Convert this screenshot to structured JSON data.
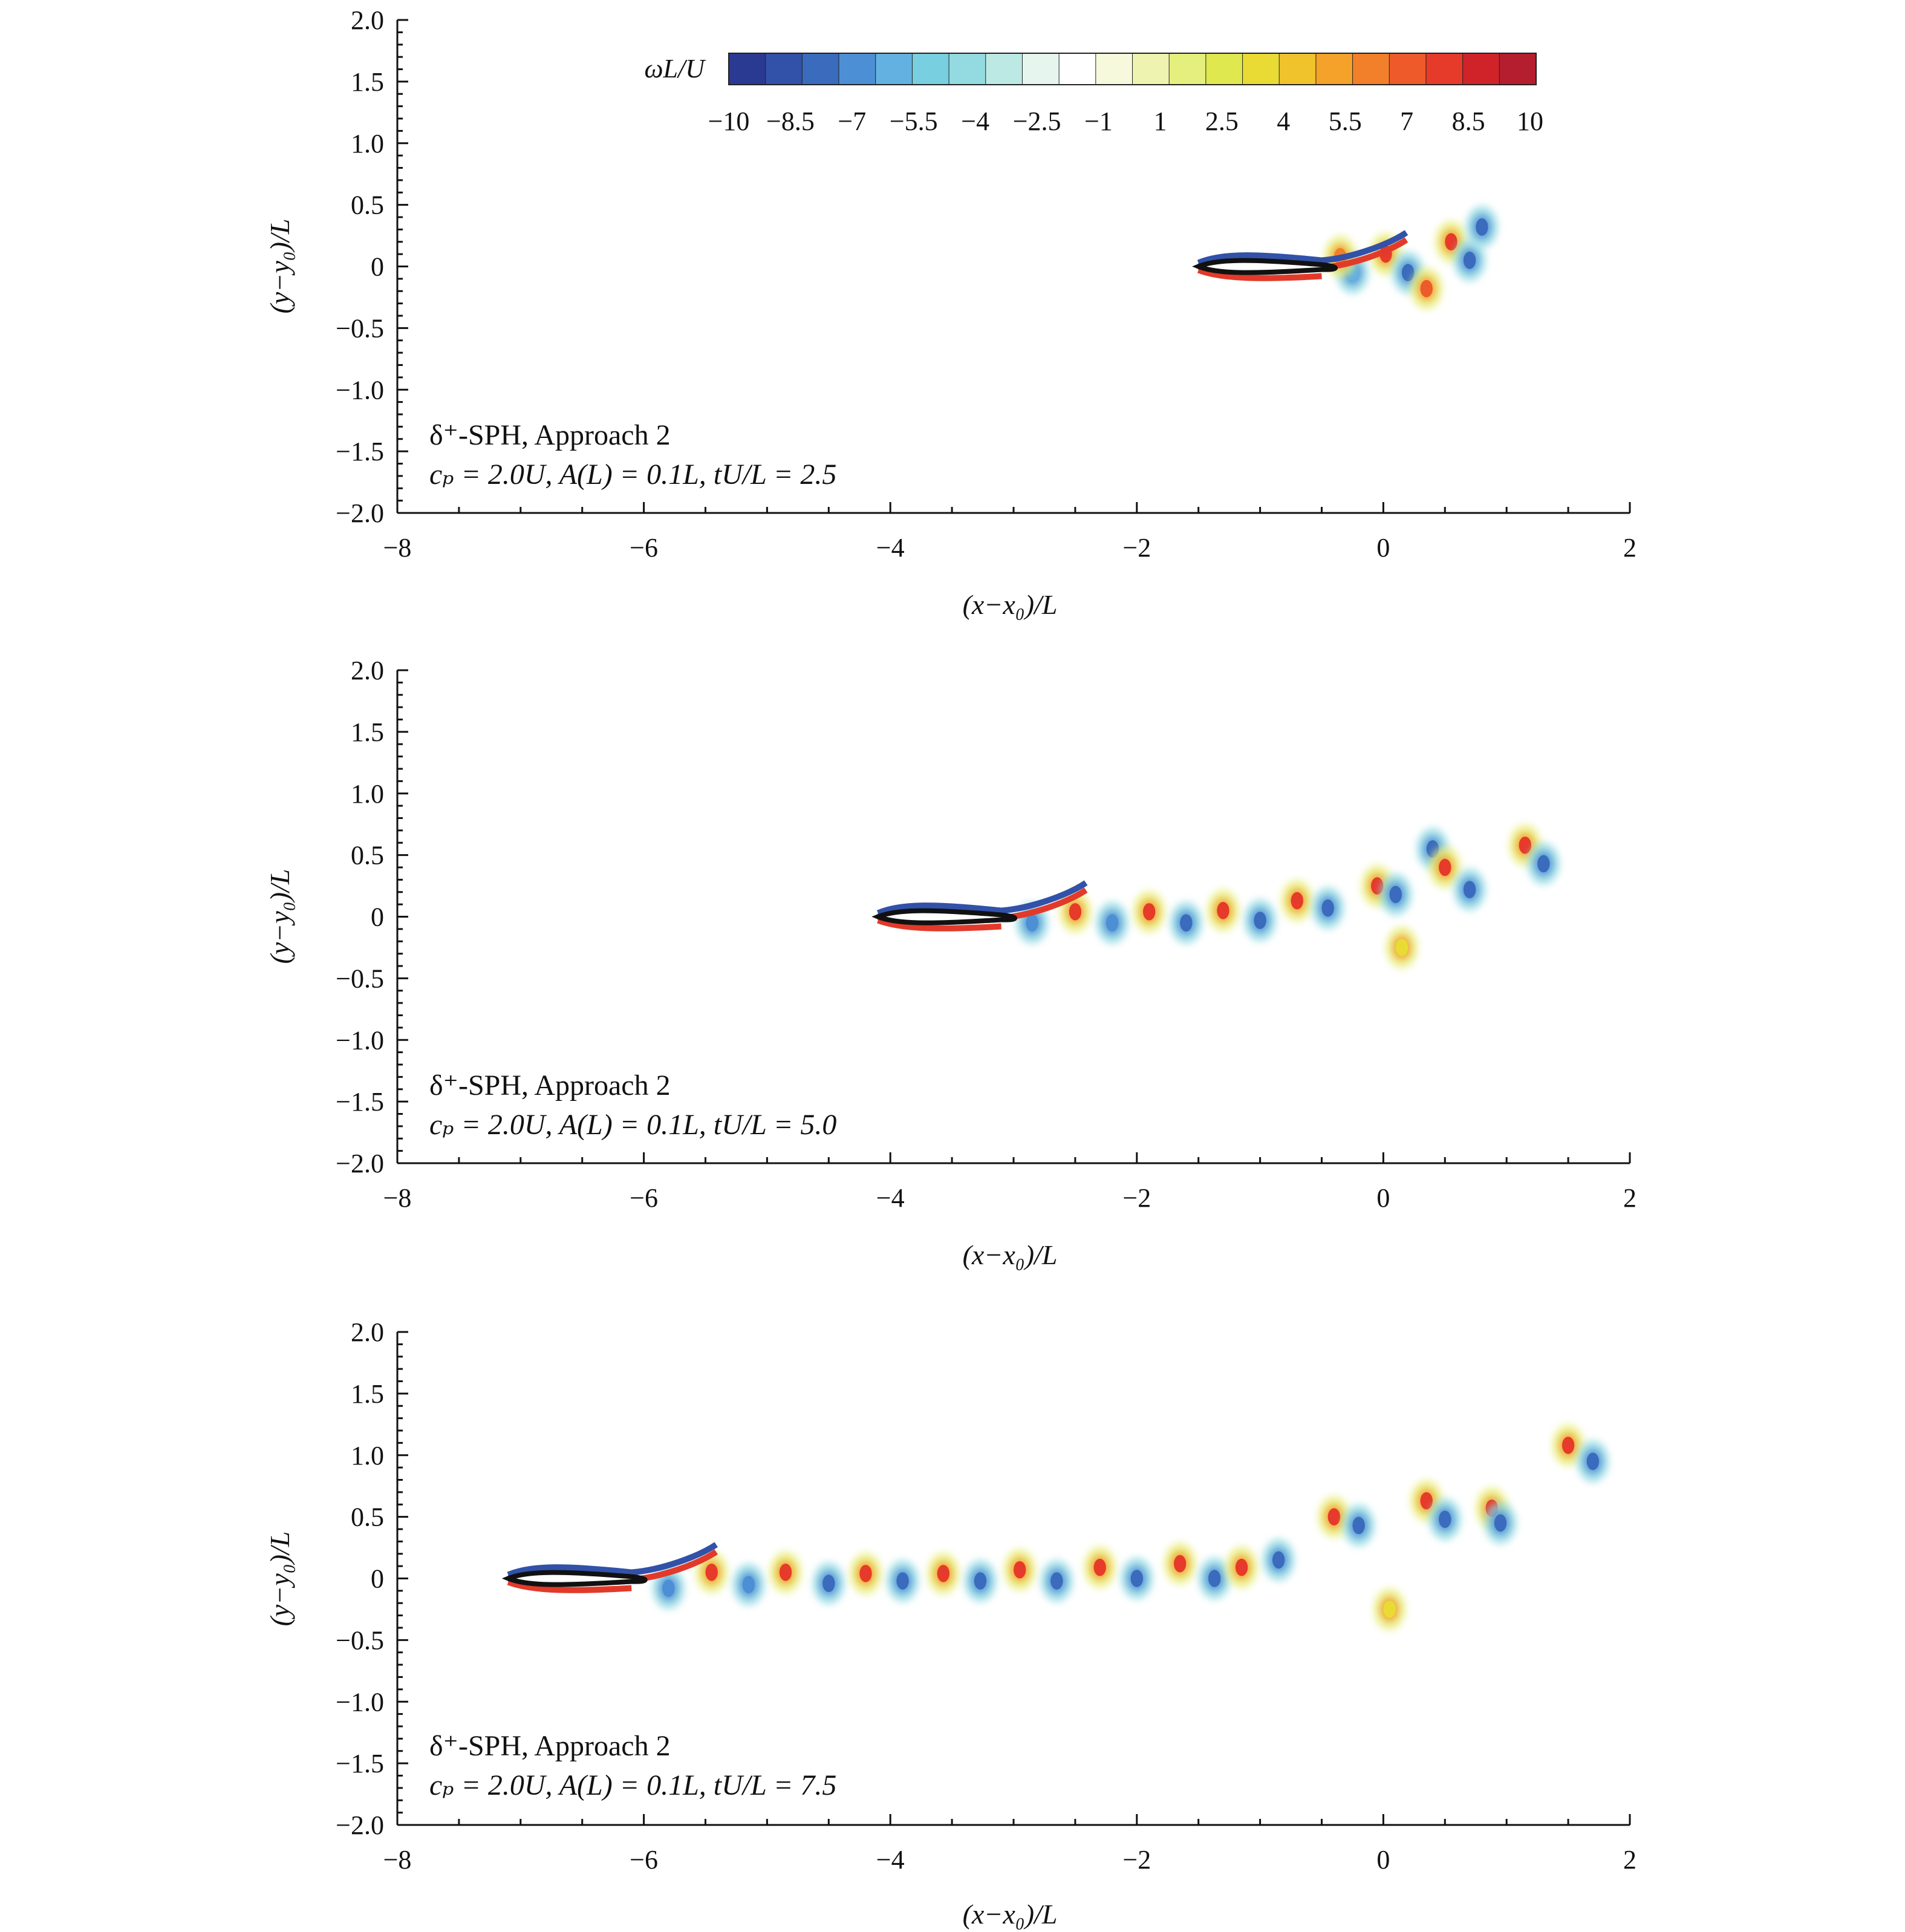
{
  "chart_data": [
    {
      "type": "heatmap",
      "title": "",
      "xlabel": "(x−x₀)/L",
      "ylabel": "(y−y₀)/L",
      "xlim": [
        -8,
        2
      ],
      "ylim": [
        -2.0,
        2.0
      ],
      "x_ticks": [
        "−8",
        "−6",
        "−4",
        "−2",
        "0",
        "2"
      ],
      "y_ticks": [
        "2.0",
        "1.5",
        "1.0",
        "0.5",
        "0",
        "−0.5",
        "−1.0",
        "−1.5",
        "−2.0"
      ],
      "annotation_line1": "δ⁺-SPH, Approach 2",
      "annotation_line2": "cₚ = 2.0U, A(L) = 0.1L, tU/L = 2.5",
      "body": {
        "x_start": -1.5,
        "x_end": -0.5
      },
      "vortices": [
        {
          "x": 0.02,
          "y": 0.1,
          "w": 8
        },
        {
          "x": 0.2,
          "y": -0.05,
          "w": -8
        },
        {
          "x": 0.35,
          "y": -0.18,
          "w": 7
        },
        {
          "x": 0.55,
          "y": 0.2,
          "w": 8
        },
        {
          "x": 0.7,
          "y": 0.05,
          "w": -8
        },
        {
          "x": 0.8,
          "y": 0.32,
          "w": -8
        },
        {
          "x": -0.25,
          "y": -0.05,
          "w": -6
        },
        {
          "x": -0.35,
          "y": 0.08,
          "w": 6
        }
      ]
    },
    {
      "type": "heatmap",
      "title": "",
      "xlabel": "(x−x₀)/L",
      "ylabel": "(y−y₀)/L",
      "xlim": [
        -8,
        2
      ],
      "ylim": [
        -2.0,
        2.0
      ],
      "x_ticks": [
        "−8",
        "−6",
        "−4",
        "−2",
        "0",
        "2"
      ],
      "y_ticks": [
        "2.0",
        "1.5",
        "1.0",
        "0.5",
        "0",
        "−0.5",
        "−1.0",
        "−1.5",
        "−2.0"
      ],
      "annotation_line1": "δ⁺-SPH, Approach 2",
      "annotation_line2": "cₚ = 2.0U, A(L) = 0.1L, tU/L = 5.0",
      "body": {
        "x_start": -4.1,
        "x_end": -3.1
      },
      "vortices": [
        {
          "x": -2.85,
          "y": -0.05,
          "w": -7
        },
        {
          "x": -2.5,
          "y": 0.04,
          "w": 8
        },
        {
          "x": -2.2,
          "y": -0.05,
          "w": -7
        },
        {
          "x": -1.9,
          "y": 0.04,
          "w": 8
        },
        {
          "x": -1.6,
          "y": -0.05,
          "w": -8
        },
        {
          "x": -1.3,
          "y": 0.05,
          "w": 8
        },
        {
          "x": -1.0,
          "y": -0.03,
          "w": -8
        },
        {
          "x": -0.7,
          "y": 0.13,
          "w": 8
        },
        {
          "x": -0.45,
          "y": 0.07,
          "w": -8
        },
        {
          "x": -0.05,
          "y": 0.25,
          "w": 8
        },
        {
          "x": 0.1,
          "y": 0.18,
          "w": -8
        },
        {
          "x": 0.15,
          "y": -0.25,
          "w": 3
        },
        {
          "x": 0.4,
          "y": 0.55,
          "w": -8
        },
        {
          "x": 0.5,
          "y": 0.4,
          "w": 8
        },
        {
          "x": 0.7,
          "y": 0.22,
          "w": -8
        },
        {
          "x": 1.15,
          "y": 0.58,
          "w": 8
        },
        {
          "x": 1.3,
          "y": 0.43,
          "w": -8
        }
      ]
    },
    {
      "type": "heatmap",
      "title": "",
      "xlabel": "(x−x₀)/L",
      "ylabel": "(y−y₀)/L",
      "xlim": [
        -8,
        2
      ],
      "ylim": [
        -2.0,
        2.0
      ],
      "x_ticks": [
        "−8",
        "−6",
        "−4",
        "−2",
        "0",
        "2"
      ],
      "y_ticks": [
        "2.0",
        "1.5",
        "1.0",
        "0.5",
        "0",
        "−0.5",
        "−1.0",
        "−1.5",
        "−2.0"
      ],
      "annotation_line1": "δ⁺-SPH, Approach 2",
      "annotation_line2": "cₚ = 2.0U, A(L) = 0.1L, tU/L = 7.5",
      "body": {
        "x_start": -7.1,
        "x_end": -6.1
      },
      "vortices": [
        {
          "x": -5.8,
          "y": -0.08,
          "w": -7
        },
        {
          "x": -5.45,
          "y": 0.05,
          "w": 8
        },
        {
          "x": -5.15,
          "y": -0.05,
          "w": -7
        },
        {
          "x": -4.85,
          "y": 0.05,
          "w": 8
        },
        {
          "x": -4.5,
          "y": -0.04,
          "w": -8
        },
        {
          "x": -4.2,
          "y": 0.04,
          "w": 8
        },
        {
          "x": -3.9,
          "y": -0.02,
          "w": -8
        },
        {
          "x": -3.57,
          "y": 0.04,
          "w": 8
        },
        {
          "x": -3.27,
          "y": -0.02,
          "w": -8
        },
        {
          "x": -2.95,
          "y": 0.07,
          "w": 8
        },
        {
          "x": -2.65,
          "y": -0.02,
          "w": -8
        },
        {
          "x": -2.3,
          "y": 0.09,
          "w": 8
        },
        {
          "x": -2.0,
          "y": 0.0,
          "w": -8
        },
        {
          "x": -1.65,
          "y": 0.12,
          "w": 8
        },
        {
          "x": -1.37,
          "y": 0.0,
          "w": -8
        },
        {
          "x": -1.15,
          "y": 0.09,
          "w": 8
        },
        {
          "x": -0.85,
          "y": 0.15,
          "w": -8
        },
        {
          "x": -0.4,
          "y": 0.5,
          "w": 8
        },
        {
          "x": -0.2,
          "y": 0.43,
          "w": -8
        },
        {
          "x": 0.05,
          "y": -0.25,
          "w": 3
        },
        {
          "x": 0.35,
          "y": 0.63,
          "w": 8
        },
        {
          "x": 0.5,
          "y": 0.48,
          "w": -8
        },
        {
          "x": 0.88,
          "y": 0.57,
          "w": 8
        },
        {
          "x": 0.95,
          "y": 0.45,
          "w": -8
        },
        {
          "x": 1.5,
          "y": 1.08,
          "w": 8
        },
        {
          "x": 1.7,
          "y": 0.95,
          "w": -8
        }
      ]
    }
  ],
  "colorbar": {
    "label": "ωL/U",
    "range": [
      -10,
      10
    ],
    "tick_labels": [
      "−10",
      "−8.5",
      "−7",
      "−5.5",
      "−4",
      "−2.5",
      "−1",
      "1",
      "2.5",
      "4",
      "5.5",
      "7",
      "8.5",
      "10"
    ],
    "colors": [
      "#2a3a93",
      "#3251a8",
      "#3a6bbd",
      "#4d8fd4",
      "#62b1e0",
      "#77cfe0",
      "#93dbe0",
      "#bde9e4",
      "#e6f6ef",
      "#ffffff",
      "#f7f9dc",
      "#eef4b0",
      "#e5ef7e",
      "#e0e84f",
      "#e9db34",
      "#f0c22c",
      "#f4a22a",
      "#f27f2a",
      "#ee5a2a",
      "#e63a2a",
      "#d02329",
      "#b51e2e"
    ]
  }
}
